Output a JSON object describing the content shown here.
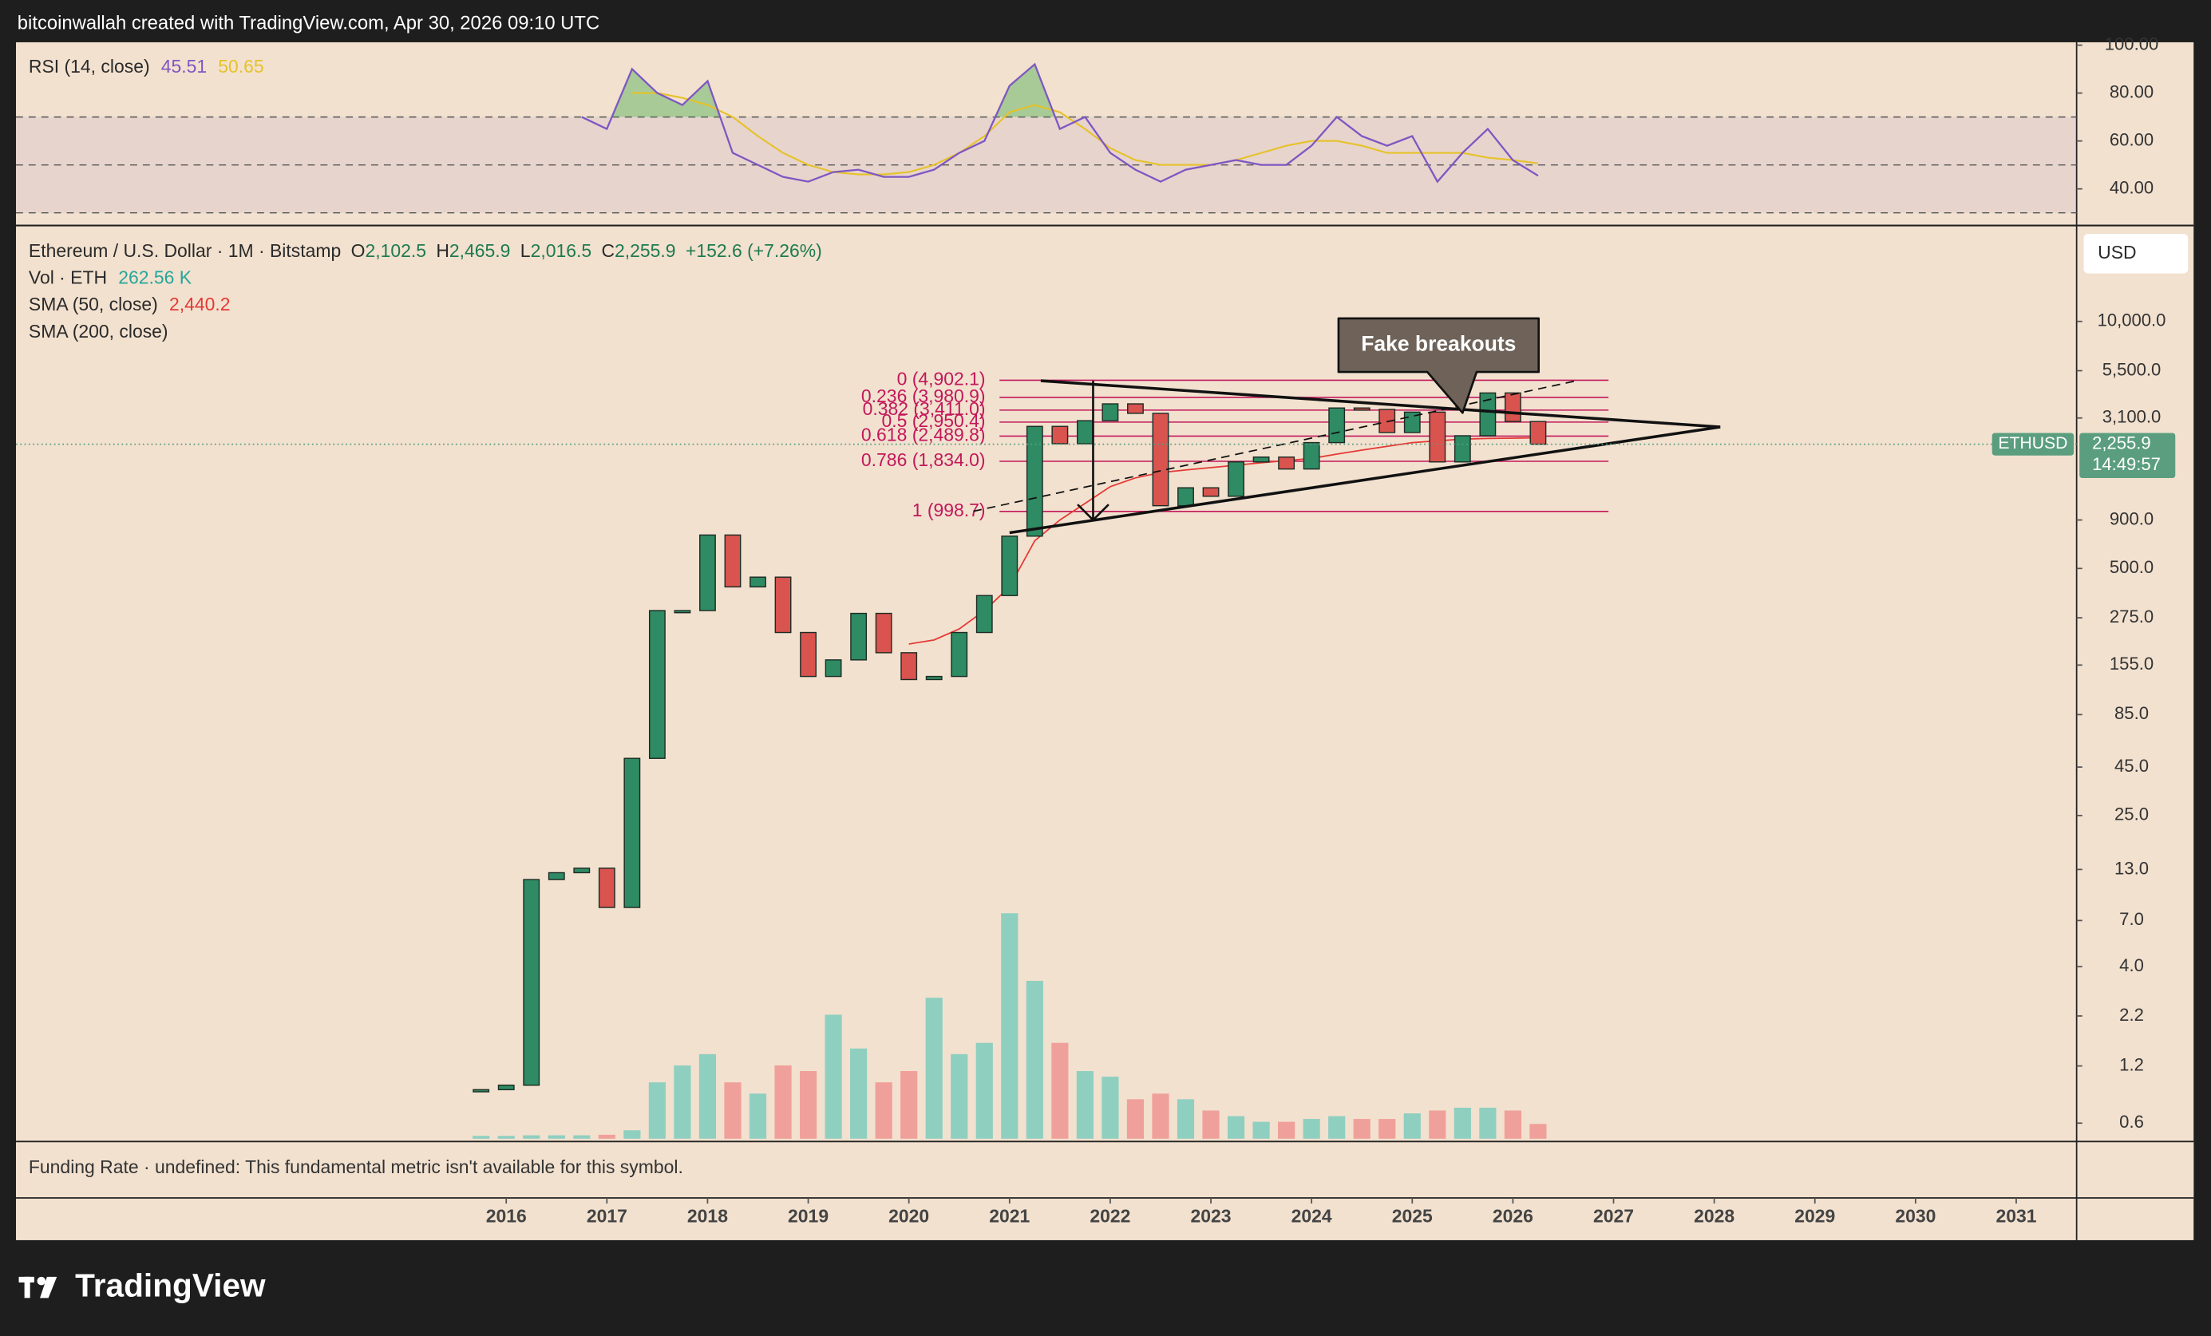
{
  "header": {
    "text": "bitcoinwallah created with TradingView.com, Apr 30, 2026 09:10 UTC"
  },
  "chart_data": {
    "type": "candlestick",
    "title": "Ethereum / U.S. Dollar · 1M · Bitstamp",
    "ohlc": [
      {
        "key": "O",
        "label": "2,102.5"
      },
      {
        "key": "H",
        "label": "2,465.9"
      },
      {
        "key": "L",
        "label": "2,016.5"
      },
      {
        "key": "C",
        "label": "2,255.9"
      }
    ],
    "change": "+152.6 (+7.26%)",
    "x": [
      2015.75,
      2016.0,
      2016.25,
      2016.5,
      2016.75,
      2017.0,
      2017.25,
      2017.5,
      2017.75,
      2018.0,
      2018.25,
      2018.5,
      2018.75,
      2019.0,
      2019.25,
      2019.5,
      2019.75,
      2020.0,
      2020.25,
      2020.5,
      2020.75,
      2021.0,
      2021.25,
      2021.5,
      2021.75,
      2022.0,
      2022.25,
      2022.5,
      2022.75,
      2023.0,
      2023.25,
      2023.5,
      2023.75,
      2024.0,
      2024.25,
      2024.5,
      2024.75,
      2025.0,
      2025.25,
      2025.5,
      2025.75,
      2026.0,
      2026.25
    ],
    "close": [
      0.9,
      0.95,
      11.5,
      12.5,
      13.2,
      8.2,
      50,
      300,
      300,
      750,
      400,
      450,
      230,
      135,
      165,
      290,
      180,
      130,
      135,
      230,
      360,
      740,
      2800,
      2270,
      3000,
      3680,
      3280,
      1070,
      1330,
      1200,
      1820,
      1930,
      1670,
      2300,
      3500,
      3440,
      2600,
      3330,
      1820,
      2500,
      4200,
      2970,
      2255.9
    ],
    "up_color": "#2e8b63",
    "down_color": "#d9534f",
    "volume": {
      "name": "Vol · ETH",
      "last_label": "262.56 K",
      "vlim": [
        0,
        5000000
      ],
      "up_color": "#8fcfc0",
      "down_color": "#f0a09a",
      "values": [
        50000,
        50000,
        60000,
        60000,
        60000,
        70000,
        150000,
        1000000,
        1300000,
        1500000,
        1000000,
        800000,
        1300000,
        1200000,
        2200000,
        1600000,
        1000000,
        1200000,
        2500000,
        1500000,
        1700000,
        4000000,
        2800000,
        1700000,
        1200000,
        1100000,
        700000,
        800000,
        700000,
        500000,
        400000,
        300000,
        300000,
        350000,
        400000,
        350000,
        350000,
        450000,
        500000,
        550000,
        550000,
        500000,
        262560
      ]
    },
    "sma": [
      {
        "name": "SMA (50, close)",
        "color": "#e53935",
        "last_label": "2,440.2",
        "values": [
          null,
          null,
          null,
          null,
          null,
          null,
          null,
          null,
          null,
          null,
          null,
          null,
          null,
          null,
          null,
          null,
          null,
          200,
          210,
          240,
          300,
          400,
          700,
          900,
          1100,
          1350,
          1500,
          1600,
          1650,
          1700,
          1750,
          1800,
          1850,
          1900,
          2000,
          2100,
          2200,
          2300,
          2350,
          2400,
          2420,
          2430,
          2440.2
        ]
      },
      {
        "name": "SMA (200, close)"
      }
    ],
    "log_scale": true,
    "ylim": [
      0.48,
      32000
    ],
    "yticks": [
      {
        "value": 10000,
        "label": "10,000.0"
      },
      {
        "value": 5500,
        "label": "5,500.0"
      },
      {
        "value": 3100,
        "label": "3,100.0"
      },
      {
        "value": 900,
        "label": "900.0"
      },
      {
        "value": 500,
        "label": "500.0"
      },
      {
        "value": 275,
        "label": "275.0"
      },
      {
        "value": 155,
        "label": "155.0"
      },
      {
        "value": 85,
        "label": "85.0"
      },
      {
        "value": 45,
        "label": "45.0"
      },
      {
        "value": 25,
        "label": "25.0"
      },
      {
        "value": 13,
        "label": "13.0"
      },
      {
        "value": 7,
        "label": "7.0"
      },
      {
        "value": 4,
        "label": "4.0"
      },
      {
        "value": 2.2,
        "label": "2.2"
      },
      {
        "value": 1.2,
        "label": "1.2"
      },
      {
        "value": 0.6,
        "label": "0.6"
      }
    ],
    "xlim": [
      2011.13,
      2031.6
    ],
    "xticks": [
      2016,
      2017,
      2018,
      2019,
      2020,
      2021,
      2022,
      2023,
      2024,
      2025,
      2026,
      2027,
      2028,
      2029,
      2030,
      2031
    ],
    "fib_color": "#c2185b",
    "fib_xrange": [
      2020.9,
      2026.95
    ],
    "fib": [
      {
        "label": "0 (4,902.1)",
        "value": 4902.1
      },
      {
        "label": "0.236 (3,980.9)",
        "value": 3980.9
      },
      {
        "label": "0.382 (3,411.0)",
        "value": 3411.0
      },
      {
        "label": "0.5 (2,950.4)",
        "value": 2950.4
      },
      {
        "label": "0.618 (2,489.8)",
        "value": 2489.8
      },
      {
        "label": "0.786 (1,834.0)",
        "value": 1834.0
      },
      {
        "label": "1 (998.7)",
        "value": 998.7
      }
    ],
    "drawings": [
      {
        "points": [
          [
            2021.31,
            4870
          ],
          [
            2028.06,
            2780
          ]
        ]
      },
      {
        "points": [
          [
            2021.0,
            771
          ],
          [
            2028.06,
            2780
          ]
        ]
      },
      {
        "points": [
          [
            2020.64,
            1000
          ],
          [
            2026.63,
            4870
          ]
        ],
        "dashed": true
      }
    ],
    "arrow": [
      [
        2021.83,
        4870
      ],
      [
        2021.83,
        900
      ]
    ],
    "callout": {
      "text": "Fake breakouts",
      "point": [
        2025.5,
        3300
      ]
    },
    "last_price": {
      "symbol": "ETHUSD",
      "label": "2,255.9",
      "countdown": "14:49:57",
      "color": "#5b9e7f"
    },
    "currency": "USD"
  },
  "rsi": {
    "title": "RSI (14, close)",
    "color": "#7e57c2",
    "values": [
      null,
      null,
      null,
      null,
      70,
      65,
      90,
      80,
      75,
      85,
      55,
      50,
      45,
      43,
      47,
      48,
      45,
      45,
      48,
      55,
      60,
      83,
      92,
      65,
      70,
      55,
      48,
      43,
      48,
      50,
      52,
      50,
      50,
      58,
      70,
      62,
      58,
      62,
      43,
      55,
      65,
      52,
      45.51
    ],
    "ma": {
      "color": "#e6c229",
      "values": [
        null,
        null,
        null,
        null,
        null,
        null,
        80,
        80,
        78,
        75,
        70,
        62,
        55,
        50,
        47,
        46,
        46,
        47,
        50,
        55,
        62,
        72,
        75,
        72,
        65,
        57,
        52,
        50,
        50,
        50,
        52,
        55,
        58,
        60,
        60,
        58,
        55,
        55,
        55,
        55,
        53,
        52,
        50.65
      ]
    },
    "ylim": [
      25.9,
      101.2
    ],
    "yticks": [
      {
        "value": 100,
        "label": "100.00"
      },
      {
        "value": 80,
        "label": "80.00"
      },
      {
        "value": 60,
        "label": "60.00"
      },
      {
        "value": 40,
        "label": "40.00"
      }
    ],
    "bands": [
      30,
      50,
      70
    ]
  },
  "funding": {
    "text": "Funding Rate · undefined: This fundamental metric isn't available for this symbol."
  },
  "footer": {
    "logo": "TradingView"
  }
}
